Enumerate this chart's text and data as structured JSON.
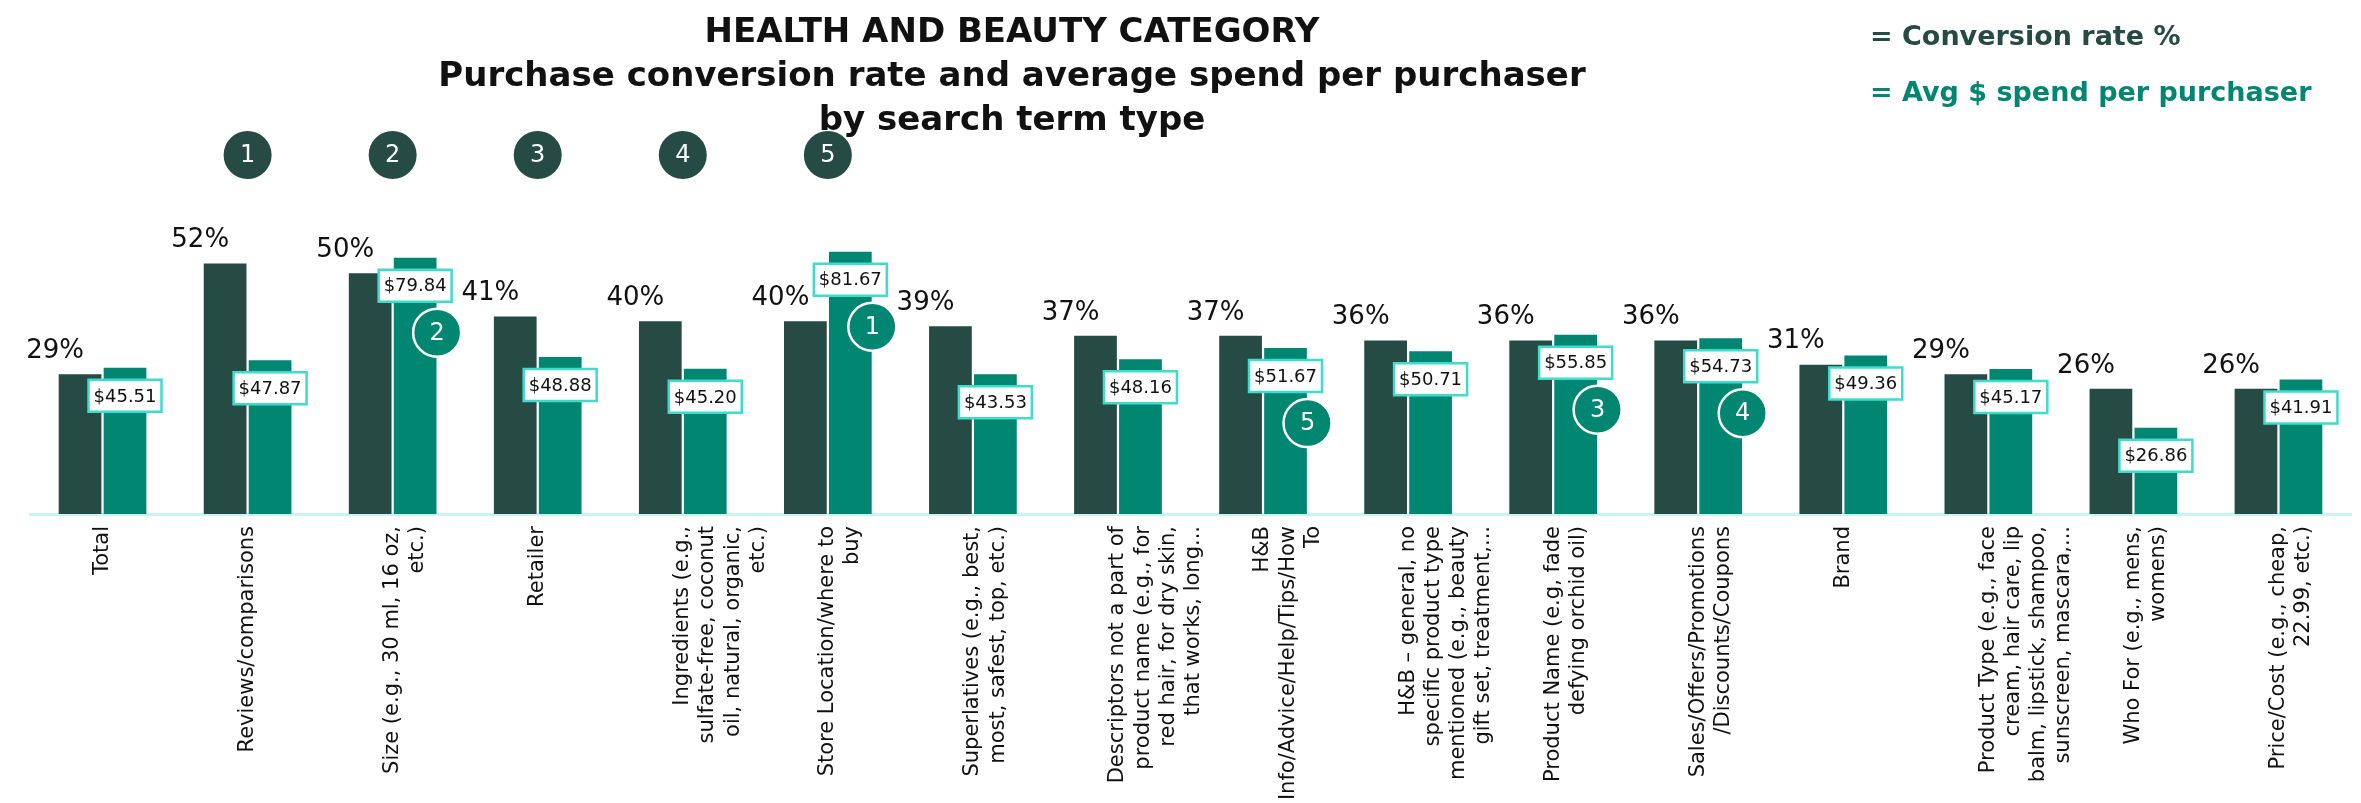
{
  "chart_data": {
    "type": "bar",
    "title": "HEALTH AND BEAUTY CATEGORY",
    "subtitle": "Purchase conversion rate and average spend per purchaser by search term type",
    "categories": [
      "Total",
      "Reviews/comparisons",
      "Size (e.g., 30 ml, 16 oz, etc.)",
      "Retailer",
      "Ingredients (e.g., sulfate-free, coconut oil, natural, organic, etc.)",
      "Store Location/where to buy",
      "Superlatives (e.g., best, most, safest, top, etc.)",
      "Descriptors not a part of product name (e.g., for red hair, for dry skin, that works, long...",
      "H&B Info/Advice/Help/Tips/How To",
      "H&B – general, no specific product type mentioned (e.g., beauty gift set, treatment,...",
      "Product Name (e.g, fade defying orchid oil)",
      "Sales/Offers/Promotions /Discounts/Coupons",
      "Brand",
      "Product Type (e.g., face cream, hair care, lip balm, lipstick, shampoo, sunscreen, mascara,...",
      "Who For (e.g., mens, womens)",
      "Price/Cost (e.g., cheap, 22.99, etc.)"
    ],
    "series": [
      {
        "name": "= Conversion rate %",
        "color": "#264a44",
        "values": [
          29,
          52,
          50,
          41,
          40,
          40,
          39,
          37,
          37,
          36,
          36,
          36,
          31,
          29,
          26,
          26
        ],
        "value_labels": [
          "29%",
          "52%",
          "50%",
          "41%",
          "40%",
          "40%",
          "39%",
          "37%",
          "37%",
          "36%",
          "36%",
          "36%",
          "31%",
          "29%",
          "26%",
          "26%"
        ]
      },
      {
        "name": "= Avg $ spend per purchaser",
        "color": "#008671",
        "axis": "y2",
        "values": [
          45.51,
          47.87,
          79.84,
          48.88,
          45.2,
          81.67,
          43.53,
          48.16,
          51.67,
          50.71,
          55.85,
          54.73,
          49.36,
          45.17,
          26.86,
          41.91
        ],
        "value_labels": [
          "$45.51",
          "$47.87",
          "$79.84",
          "$48.88",
          "$45.20",
          "$81.67",
          "$43.53",
          "$48.16",
          "$51.67",
          "$50.71",
          "$55.85",
          "$54.73",
          "$49.36",
          "$45.17",
          "$26.86",
          "$41.91"
        ]
      }
    ],
    "tick_labels": "x",
    "grid": false,
    "legend": "top right",
    "annotations": [
      "1",
      "2",
      "3",
      "4",
      "5",
      "1",
      "2",
      "3",
      "4",
      "5"
    ]
  }
}
